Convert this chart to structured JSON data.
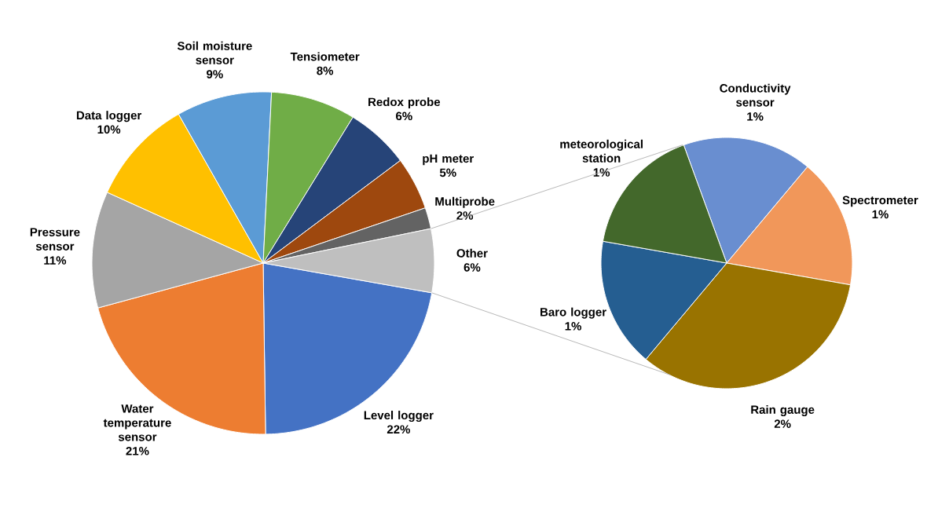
{
  "chart_data": [
    {
      "type": "pie",
      "categories": [
        "Level logger",
        "Water temperature sensor",
        "Pressure sensor",
        "Data logger",
        "Soil moisture sensor",
        "Tensiometer",
        "Redox probe",
        "pH meter",
        "Multiprobe",
        "Other"
      ],
      "values": [
        22,
        21,
        11,
        10,
        9,
        8,
        6,
        5,
        2,
        6
      ],
      "value_labels": [
        "22%",
        "21%",
        "11%",
        "10%",
        "9%",
        "8%",
        "6%",
        "5%",
        "2%",
        "6%"
      ],
      "colors": [
        "#4472c4",
        "#ed7d31",
        "#a5a5a5",
        "#ffc000",
        "#5b9bd5",
        "#70ad47",
        "#264478",
        "#9e480e",
        "#636363",
        "#bfbfbf"
      ]
    },
    {
      "type": "pie",
      "categories": [
        "Conductivity sensor",
        "Spectrometer",
        "Rain gauge",
        "Baro logger",
        "meteorological station"
      ],
      "values": [
        1,
        1,
        2,
        1,
        1
      ],
      "value_labels": [
        "1%",
        "1%",
        "2%",
        "1%",
        "1%"
      ],
      "colors": [
        "#698ed0",
        "#f1975a",
        "#997300",
        "#255e91",
        "#43682b"
      ]
    }
  ]
}
